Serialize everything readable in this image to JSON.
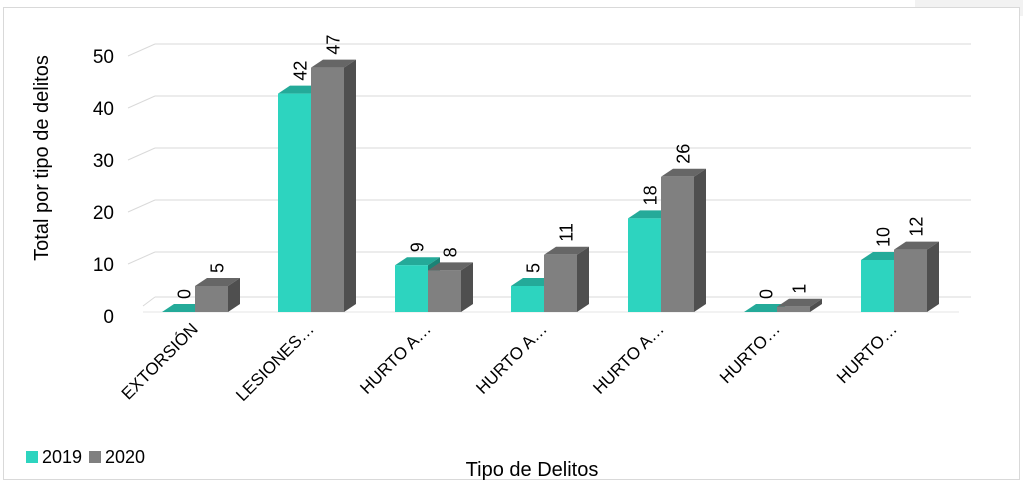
{
  "chart_data": {
    "type": "bar",
    "title": "",
    "xlabel": "Tipo de Delitos",
    "ylabel": "Total por tipo de delitos",
    "ylim": [
      0,
      50
    ],
    "yticks": [
      0,
      10,
      20,
      30,
      40,
      50
    ],
    "categories": [
      "EXTORSIÓN",
      "LESIONES…",
      "HURTO A…",
      "HURTO A…",
      "HURTO A…",
      "HURTO…",
      "HURTO…"
    ],
    "series": [
      {
        "name": "2019",
        "color": "#2dd4bf",
        "values": [
          0,
          42,
          9,
          5,
          18,
          0,
          10
        ]
      },
      {
        "name": "2020",
        "color": "#808080",
        "values": [
          5,
          47,
          8,
          11,
          26,
          1,
          12
        ]
      }
    ],
    "grid": true,
    "legend_position": "bottom-left",
    "style": "3d-clustered-column"
  }
}
